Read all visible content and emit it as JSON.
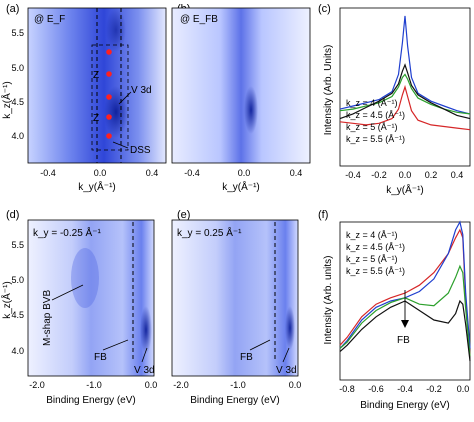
{
  "chart_data": [
    {
      "panel": "(a)",
      "type": "heatmap",
      "note_text": "@ E_F",
      "xlabel": "k_y(Å⁻¹)",
      "ylabel": "k_z(Å⁻¹)",
      "xticks": [
        "-0.4",
        "0.0",
        "0.4"
      ],
      "yticks": [
        "4.0",
        "4.5",
        "5.0",
        "5.5"
      ],
      "xlim": [
        -0.55,
        0.55
      ],
      "ylim": [
        3.8,
        5.8
      ],
      "colormap": "white-to-blue",
      "annotations": [
        "Z",
        "Z",
        "V 3d",
        "DSS"
      ],
      "marked_kz_points": [
        4.0,
        4.2,
        4.5,
        4.8,
        5.2
      ],
      "dashed_lines_ky": [
        -0.1,
        0.05
      ]
    },
    {
      "panel": "(b)",
      "type": "heatmap",
      "note_text": "@ E_FB",
      "xlabel": "k_y(Å⁻¹)",
      "xticks": [
        "-0.4",
        "0.0",
        "0.4"
      ],
      "xlim": [
        -0.55,
        0.55
      ],
      "ylim": [
        3.8,
        5.8
      ],
      "colormap": "white-to-blue"
    },
    {
      "panel": "(c)",
      "type": "line",
      "xlabel": "k_y(Å⁻¹)",
      "ylabel": "Intensity (Arb. Units)",
      "xticks": [
        "-0.4",
        "-0.2",
        "0.0",
        "0.2",
        "0.4"
      ],
      "xlim": [
        -0.5,
        0.5
      ],
      "legend_position": "bottom-left",
      "series": [
        {
          "name": "k_z = 4 (Å⁻¹)",
          "color": "#d62728",
          "x": [
            -0.5,
            -0.4,
            -0.3,
            -0.2,
            -0.1,
            -0.05,
            -0.02,
            0.0,
            0.02,
            0.05,
            0.1,
            0.2,
            0.3,
            0.4,
            0.5
          ],
          "y": [
            0.28,
            0.27,
            0.26,
            0.27,
            0.3,
            0.36,
            0.45,
            0.5,
            0.44,
            0.35,
            0.29,
            0.26,
            0.25,
            0.24,
            0.23
          ]
        },
        {
          "name": "k_z = 4.5 (Å⁻¹)",
          "color": "#1f3fcf",
          "x": [
            -0.5,
            -0.4,
            -0.3,
            -0.2,
            -0.1,
            -0.05,
            -0.02,
            0.0,
            0.02,
            0.05,
            0.1,
            0.2,
            0.3,
            0.4,
            0.5
          ],
          "y": [
            0.36,
            0.38,
            0.4,
            0.42,
            0.47,
            0.58,
            0.78,
            0.95,
            0.76,
            0.56,
            0.46,
            0.41,
            0.38,
            0.35,
            0.33
          ]
        },
        {
          "name": "k_z = 5 (Å⁻¹)",
          "color": "#2ca02c",
          "x": [
            -0.5,
            -0.4,
            -0.3,
            -0.2,
            -0.1,
            -0.05,
            -0.02,
            0.0,
            0.02,
            0.05,
            0.1,
            0.2,
            0.3,
            0.4,
            0.5
          ],
          "y": [
            0.35,
            0.36,
            0.38,
            0.4,
            0.44,
            0.5,
            0.56,
            0.58,
            0.55,
            0.49,
            0.43,
            0.39,
            0.36,
            0.34,
            0.33
          ]
        },
        {
          "name": "k_z = 5.5 (Å⁻¹)",
          "color": "#111111",
          "x": [
            -0.5,
            -0.4,
            -0.3,
            -0.2,
            -0.1,
            -0.05,
            -0.02,
            0.0,
            0.02,
            0.05,
            0.1,
            0.2,
            0.3,
            0.4,
            0.5
          ],
          "y": [
            0.3,
            0.33,
            0.37,
            0.41,
            0.46,
            0.52,
            0.6,
            0.64,
            0.59,
            0.51,
            0.45,
            0.4,
            0.36,
            0.32,
            0.3
          ]
        }
      ]
    },
    {
      "panel": "(d)",
      "type": "heatmap",
      "note_text": "k_y = -0.25 Å⁻¹",
      "xlabel": "Binding Energy (eV)",
      "ylabel": "k_z(Å⁻¹)",
      "xticks": [
        "-2.0",
        "-1.0",
        "0.0"
      ],
      "yticks": [
        "4.0",
        "4.5",
        "5.0",
        "5.5"
      ],
      "xlim": [
        -2.05,
        0.15
      ],
      "ylim": [
        3.8,
        5.8
      ],
      "colormap": "white-to-blue",
      "annotations": [
        "M-shap BVB",
        "FB",
        "V 3d"
      ],
      "dashed_line_energy": -0.4
    },
    {
      "panel": "(e)",
      "type": "heatmap",
      "note_text": "k_y = 0.25 Å⁻¹",
      "xlabel": "Binding Energy (eV)",
      "xticks": [
        "-2.0",
        "-1.0",
        "0.0"
      ],
      "xlim": [
        -2.05,
        0.15
      ],
      "ylim": [
        3.8,
        5.8
      ],
      "colormap": "white-to-blue",
      "annotations": [
        "FB",
        "V 3d"
      ],
      "dashed_line_energy": -0.4
    },
    {
      "panel": "(f)",
      "type": "line",
      "xlabel": "Binding Energy (eV)",
      "ylabel": "Intensity (Arb. units)",
      "xticks": [
        "-0.8",
        "-0.6",
        "-0.4",
        "-0.2",
        "0.0"
      ],
      "xlim": [
        -0.85,
        0.05
      ],
      "legend_position": "top-left",
      "annotations": [
        "FB"
      ],
      "series": [
        {
          "name": "k_z = 4 (Å⁻¹)",
          "color": "#d62728",
          "x": [
            -0.85,
            -0.8,
            -0.7,
            -0.6,
            -0.5,
            -0.4,
            -0.3,
            -0.2,
            -0.1,
            -0.05,
            -0.02,
            0.0,
            0.02,
            0.05
          ],
          "y": [
            0.22,
            0.27,
            0.4,
            0.48,
            0.52,
            0.55,
            0.6,
            0.68,
            0.8,
            0.9,
            0.95,
            0.9,
            0.5,
            0.15
          ]
        },
        {
          "name": "k_z = 4.5 (Å⁻¹)",
          "color": "#1f3fcf",
          "x": [
            -0.85,
            -0.8,
            -0.7,
            -0.6,
            -0.5,
            -0.4,
            -0.3,
            -0.2,
            -0.1,
            -0.05,
            -0.02,
            0.0,
            0.02,
            0.05
          ],
          "y": [
            0.2,
            0.25,
            0.38,
            0.46,
            0.5,
            0.52,
            0.56,
            0.64,
            0.8,
            0.95,
            1.0,
            0.92,
            0.55,
            0.2
          ]
        },
        {
          "name": "k_z = 5 (Å⁻¹)",
          "color": "#2ca02c",
          "x": [
            -0.85,
            -0.8,
            -0.7,
            -0.6,
            -0.5,
            -0.4,
            -0.3,
            -0.2,
            -0.1,
            -0.05,
            -0.02,
            0.0,
            0.02,
            0.05
          ],
          "y": [
            0.2,
            0.24,
            0.36,
            0.44,
            0.49,
            0.52,
            0.48,
            0.47,
            0.55,
            0.65,
            0.72,
            0.68,
            0.45,
            0.15
          ]
        },
        {
          "name": "k_z = 5.5 (Å⁻¹)",
          "color": "#111111",
          "x": [
            -0.85,
            -0.8,
            -0.7,
            -0.6,
            -0.5,
            -0.4,
            -0.3,
            -0.2,
            -0.1,
            -0.05,
            -0.02,
            0.0,
            0.02,
            0.05
          ],
          "y": [
            0.18,
            0.22,
            0.32,
            0.4,
            0.46,
            0.5,
            0.44,
            0.38,
            0.36,
            0.42,
            0.5,
            0.48,
            0.35,
            0.12
          ]
        }
      ]
    }
  ]
}
